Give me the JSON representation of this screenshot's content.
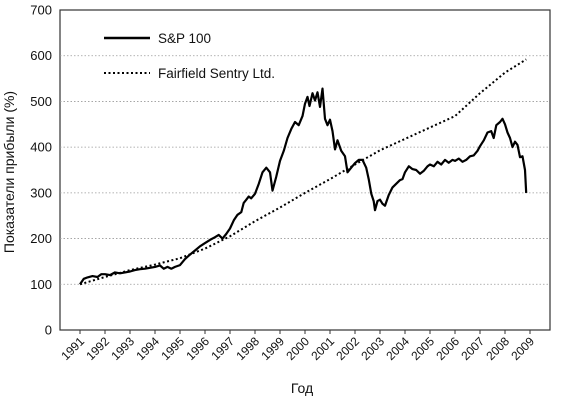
{
  "chart_data": {
    "type": "line",
    "xlabel": "Год",
    "ylabel": "Показатели прибыли (%)",
    "xlim": [
      1991,
      2009
    ],
    "ylim": [
      0,
      700
    ],
    "grid": true,
    "legend": "top-left",
    "x_ticks": [
      "1991",
      "1992",
      "1993",
      "1994",
      "1995",
      "1996",
      "1997",
      "1998",
      "1999",
      "2000",
      "2001",
      "2002",
      "2003",
      "2004",
      "2005",
      "2006",
      "2007",
      "2008",
      "2009"
    ],
    "y_ticks": [
      "0",
      "100",
      "200",
      "300",
      "400",
      "500",
      "600",
      "700"
    ],
    "series": [
      {
        "name": "S&P 100",
        "style": "solid",
        "color": "#000000",
        "points": [
          [
            1991.0,
            100
          ],
          [
            1991.15,
            112
          ],
          [
            1991.3,
            115
          ],
          [
            1991.5,
            118
          ],
          [
            1991.7,
            116
          ],
          [
            1991.85,
            122
          ],
          [
            1992.0,
            122
          ],
          [
            1992.2,
            120
          ],
          [
            1992.4,
            126
          ],
          [
            1992.6,
            124
          ],
          [
            1992.8,
            126
          ],
          [
            1993.0,
            128
          ],
          [
            1993.2,
            131
          ],
          [
            1993.4,
            133
          ],
          [
            1993.6,
            134
          ],
          [
            1993.8,
            136
          ],
          [
            1994.0,
            138
          ],
          [
            1994.2,
            141
          ],
          [
            1994.35,
            134
          ],
          [
            1994.5,
            138
          ],
          [
            1994.65,
            134
          ],
          [
            1994.8,
            138
          ],
          [
            1995.0,
            142
          ],
          [
            1995.2,
            155
          ],
          [
            1995.4,
            165
          ],
          [
            1995.6,
            174
          ],
          [
            1995.8,
            183
          ],
          [
            1996.0,
            190
          ],
          [
            1996.2,
            197
          ],
          [
            1996.4,
            203
          ],
          [
            1996.55,
            208
          ],
          [
            1996.7,
            200
          ],
          [
            1996.85,
            210
          ],
          [
            1997.0,
            222
          ],
          [
            1997.15,
            240
          ],
          [
            1997.3,
            252
          ],
          [
            1997.45,
            258
          ],
          [
            1997.55,
            278
          ],
          [
            1997.65,
            285
          ],
          [
            1997.75,
            292
          ],
          [
            1997.85,
            288
          ],
          [
            1998.0,
            298
          ],
          [
            1998.15,
            320
          ],
          [
            1998.3,
            345
          ],
          [
            1998.45,
            355
          ],
          [
            1998.6,
            345
          ],
          [
            1998.7,
            305
          ],
          [
            1998.85,
            335
          ],
          [
            1999.0,
            370
          ],
          [
            1999.15,
            392
          ],
          [
            1999.3,
            420
          ],
          [
            1999.45,
            440
          ],
          [
            1999.6,
            455
          ],
          [
            1999.75,
            448
          ],
          [
            1999.9,
            468
          ],
          [
            2000.0,
            495
          ],
          [
            2000.1,
            510
          ],
          [
            2000.18,
            490
          ],
          [
            2000.3,
            518
          ],
          [
            2000.4,
            502
          ],
          [
            2000.5,
            520
          ],
          [
            2000.6,
            488
          ],
          [
            2000.7,
            528
          ],
          [
            2000.8,
            462
          ],
          [
            2000.9,
            448
          ],
          [
            2001.0,
            460
          ],
          [
            2001.1,
            435
          ],
          [
            2001.2,
            395
          ],
          [
            2001.3,
            415
          ],
          [
            2001.45,
            392
          ],
          [
            2001.6,
            380
          ],
          [
            2001.7,
            345
          ],
          [
            2001.85,
            355
          ],
          [
            2002.0,
            365
          ],
          [
            2002.15,
            372
          ],
          [
            2002.3,
            372
          ],
          [
            2002.45,
            355
          ],
          [
            2002.55,
            330
          ],
          [
            2002.65,
            298
          ],
          [
            2002.75,
            282
          ],
          [
            2002.8,
            262
          ],
          [
            2002.9,
            282
          ],
          [
            2003.0,
            285
          ],
          [
            2003.1,
            276
          ],
          [
            2003.2,
            272
          ],
          [
            2003.35,
            295
          ],
          [
            2003.5,
            312
          ],
          [
            2003.65,
            320
          ],
          [
            2003.8,
            328
          ],
          [
            2003.9,
            330
          ],
          [
            2004.0,
            345
          ],
          [
            2004.15,
            358
          ],
          [
            2004.3,
            352
          ],
          [
            2004.45,
            350
          ],
          [
            2004.6,
            342
          ],
          [
            2004.75,
            348
          ],
          [
            2004.9,
            358
          ],
          [
            2005.0,
            362
          ],
          [
            2005.15,
            358
          ],
          [
            2005.3,
            368
          ],
          [
            2005.45,
            362
          ],
          [
            2005.6,
            372
          ],
          [
            2005.75,
            366
          ],
          [
            2005.9,
            372
          ],
          [
            2006.0,
            370
          ],
          [
            2006.15,
            375
          ],
          [
            2006.3,
            368
          ],
          [
            2006.45,
            372
          ],
          [
            2006.6,
            380
          ],
          [
            2006.75,
            382
          ],
          [
            2006.9,
            392
          ],
          [
            2007.0,
            402
          ],
          [
            2007.15,
            415
          ],
          [
            2007.3,
            432
          ],
          [
            2007.45,
            435
          ],
          [
            2007.55,
            420
          ],
          [
            2007.65,
            448
          ],
          [
            2007.8,
            455
          ],
          [
            2007.9,
            462
          ],
          [
            2008.0,
            450
          ],
          [
            2008.1,
            432
          ],
          [
            2008.2,
            420
          ],
          [
            2008.3,
            400
          ],
          [
            2008.4,
            412
          ],
          [
            2008.5,
            405
          ],
          [
            2008.6,
            378
          ],
          [
            2008.7,
            380
          ],
          [
            2008.8,
            350
          ],
          [
            2008.85,
            300
          ]
        ]
      },
      {
        "name": "Fairfield Sentry Ltd.",
        "style": "dotted",
        "color": "#000000",
        "points": [
          [
            1991.0,
            100
          ],
          [
            1992.0,
            116
          ],
          [
            1993.0,
            131
          ],
          [
            1994.0,
            143
          ],
          [
            1995.0,
            157
          ],
          [
            1996.0,
            178
          ],
          [
            1997.0,
            205
          ],
          [
            1998.0,
            238
          ],
          [
            1999.0,
            268
          ],
          [
            2000.0,
            300
          ],
          [
            2001.0,
            330
          ],
          [
            2002.0,
            362
          ],
          [
            2003.0,
            393
          ],
          [
            2004.0,
            418
          ],
          [
            2005.0,
            443
          ],
          [
            2006.0,
            468
          ],
          [
            2007.0,
            518
          ],
          [
            2008.0,
            563
          ],
          [
            2008.85,
            592
          ]
        ]
      }
    ]
  }
}
